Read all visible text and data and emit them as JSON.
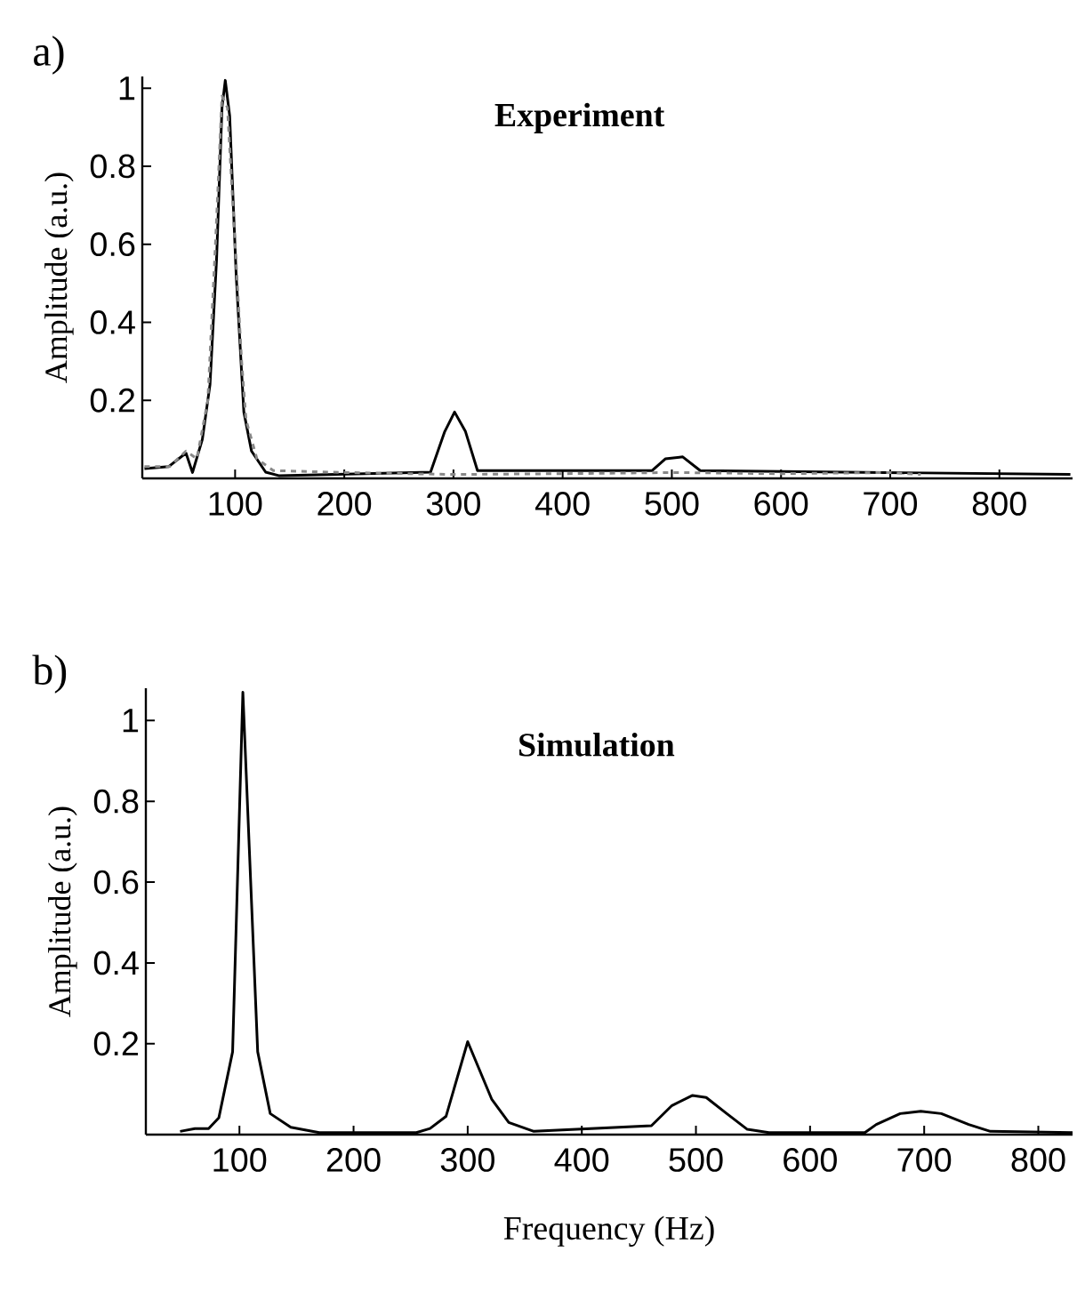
{
  "chart_data": [
    {
      "type": "line",
      "title": "Experiment",
      "ylabel": "Amplitude (a.u.)",
      "annotations": [
        "a)"
      ],
      "xlim": [
        15,
        867
      ],
      "ylim": [
        0,
        1.03
      ],
      "xticks": [
        100,
        200,
        300,
        400,
        500,
        600,
        700,
        800
      ],
      "yticks": [
        0.2,
        0.4,
        0.6,
        0.8,
        1
      ],
      "series": [
        {
          "color": "#000000",
          "line_style": "solid",
          "x": [
            17,
            39,
            55,
            61,
            70,
            77,
            83,
            88,
            91,
            95,
            101,
            108,
            115,
            128,
            140,
            279,
            292,
            301,
            311,
            322,
            482,
            494,
            510,
            526,
            865
          ],
          "values": [
            0.025,
            0.03,
            0.065,
            0.015,
            0.1,
            0.24,
            0.56,
            0.95,
            1.02,
            0.93,
            0.52,
            0.17,
            0.07,
            0.016,
            0.007,
            0.016,
            0.12,
            0.17,
            0.12,
            0.02,
            0.02,
            0.05,
            0.055,
            0.02,
            0.01
          ]
        },
        {
          "color": "#888888",
          "line_style": "dashed",
          "x": [
            17,
            40,
            55,
            65,
            75,
            82,
            88,
            93,
            100,
            106,
            110,
            120,
            135,
            200,
            300,
            400,
            500,
            600,
            700,
            728
          ],
          "values": [
            0.03,
            0.03,
            0.07,
            0.05,
            0.2,
            0.6,
            0.98,
            0.95,
            0.6,
            0.3,
            0.15,
            0.05,
            0.02,
            0.015,
            0.01,
            0.012,
            0.015,
            0.012,
            0.015,
            0.01
          ]
        }
      ]
    },
    {
      "type": "line",
      "title": "Simulation",
      "ylabel": "Amplitude (a.u.)",
      "xlabel": "Frequency (Hz)",
      "annotations": [
        "b)"
      ],
      "xlim": [
        18,
        830
      ],
      "ylim": [
        -0.025,
        1.08
      ],
      "xticks": [
        100,
        200,
        300,
        400,
        500,
        600,
        700,
        800
      ],
      "yticks": [
        0.2,
        0.4,
        0.6,
        0.8,
        1
      ],
      "series": [
        {
          "color": "#000000",
          "line_style": "solid",
          "x": [
            48,
            61,
            73,
            82,
            94,
            103,
            116,
            127,
            145,
            170,
            255,
            267,
            281,
            300,
            321,
            336,
            358,
            461,
            479,
            497,
            509,
            527,
            545,
            564,
            648,
            658,
            679,
            697,
            715,
            739,
            758,
            830
          ],
          "values": [
            -0.017,
            -0.01,
            -0.01,
            0.017,
            0.18,
            1.07,
            0.18,
            0.027,
            -0.007,
            -0.02,
            -0.02,
            -0.01,
            0.02,
            0.205,
            0.063,
            0.005,
            -0.017,
            -0.003,
            0.047,
            0.072,
            0.067,
            0.027,
            -0.012,
            -0.02,
            -0.02,
            0,
            0.027,
            0.033,
            0.027,
            0,
            -0.017,
            -0.02
          ]
        }
      ]
    }
  ]
}
